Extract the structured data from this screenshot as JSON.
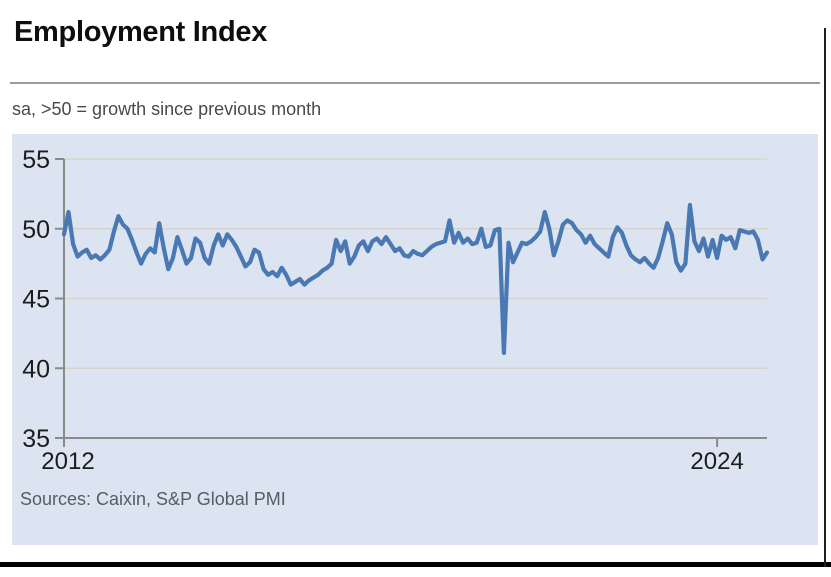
{
  "page": {
    "title": "Employment Index",
    "subtitle": "sa, >50 = growth since previous month",
    "source": "Sources: Caixin, S&P Global PMI"
  },
  "colors": {
    "line": "#4a78b2",
    "panel_bg": "#dce4f1",
    "grid": "#d5d1ca",
    "axis": "#8a8a8a",
    "tick_text": "#1c1c1c",
    "title_text": "#0e0e0e",
    "subtitle_text": "#4a4a4a",
    "source_text": "#575c66",
    "frame": "#000000"
  },
  "chart_data": {
    "type": "line",
    "title": "Employment Index",
    "subtitle": "sa, >50 = growth since previous month",
    "source": "Sources: Caixin, S&P Global PMI",
    "ylim": [
      35,
      55
    ],
    "y_ticks": [
      35,
      40,
      45,
      50,
      55
    ],
    "x_ticks": [
      {
        "label": "2012",
        "month_index": 0
      },
      {
        "label": "2024",
        "month_index": 144
      }
    ],
    "grid": "horizontal",
    "legend": "none",
    "series": [
      {
        "name": "Employment Index",
        "frequency": "monthly",
        "start": "2012-01",
        "end": "2024-12",
        "values": [
          49.6,
          51.2,
          48.9,
          48.0,
          48.3,
          48.5,
          47.9,
          48.1,
          47.8,
          48.1,
          48.5,
          49.8,
          50.9,
          50.3,
          50.0,
          49.2,
          48.3,
          47.5,
          48.2,
          48.6,
          48.3,
          50.4,
          48.6,
          47.1,
          47.9,
          49.4,
          48.5,
          47.5,
          47.9,
          49.3,
          49.0,
          47.9,
          47.5,
          48.8,
          49.6,
          48.8,
          49.6,
          49.2,
          48.7,
          48.0,
          47.3,
          47.6,
          48.5,
          48.3,
          47.1,
          46.7,
          46.9,
          46.6,
          47.2,
          46.7,
          46.0,
          46.2,
          46.4,
          46.0,
          46.3,
          46.5,
          46.7,
          47.0,
          47.2,
          47.5,
          49.2,
          48.4,
          49.1,
          47.5,
          48.0,
          48.8,
          49.1,
          48.4,
          49.1,
          49.3,
          48.9,
          49.4,
          48.9,
          48.4,
          48.6,
          48.1,
          48.0,
          48.4,
          48.2,
          48.1,
          48.4,
          48.7,
          48.9,
          49.0,
          49.1,
          50.6,
          49.0,
          49.7,
          49.0,
          49.3,
          48.9,
          49.0,
          50.0,
          48.7,
          48.8,
          49.9,
          50.0,
          41.1,
          49.0,
          47.6,
          48.3,
          49.0,
          48.9,
          49.1,
          49.4,
          49.8,
          51.2,
          50.0,
          48.1,
          49.1,
          50.3,
          50.6,
          50.4,
          49.9,
          49.6,
          49.0,
          49.5,
          48.9,
          48.6,
          48.3,
          48.0,
          49.4,
          50.1,
          49.7,
          48.8,
          48.1,
          47.8,
          47.6,
          47.9,
          47.5,
          47.2,
          47.9,
          49.1,
          50.4,
          49.6,
          47.6,
          47.0,
          47.5,
          51.7,
          49.1,
          48.4,
          49.3,
          48.0,
          49.2,
          47.9,
          49.5,
          49.2,
          49.4,
          48.6,
          49.9,
          49.8,
          49.7,
          49.8,
          49.2,
          47.8,
          48.3
        ]
      }
    ]
  }
}
